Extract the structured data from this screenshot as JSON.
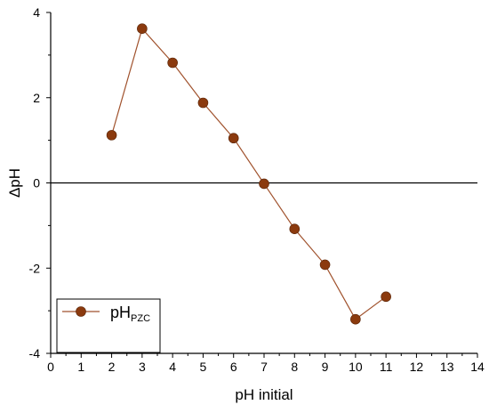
{
  "chart_data": {
    "type": "line",
    "x": [
      2,
      3,
      4,
      5,
      6,
      7,
      8,
      9,
      10,
      11
    ],
    "series": [
      {
        "name": "pHPZC",
        "name_main": "pH",
        "name_sub": "PZC",
        "values": [
          1.12,
          3.62,
          2.82,
          1.88,
          1.05,
          -0.02,
          -1.08,
          -1.92,
          -3.2,
          -2.67
        ],
        "color": "#8B3A0E",
        "line_color": "#A0522D"
      }
    ],
    "xlabel": "pH initial",
    "ylabel": "ΔpH",
    "xlim": [
      0,
      14
    ],
    "ylim": [
      -4,
      4
    ],
    "xticks": [
      "0",
      "1",
      "2",
      "3",
      "4",
      "5",
      "6",
      "7",
      "8",
      "9",
      "10",
      "11",
      "12",
      "13",
      "14"
    ],
    "yticks": [
      "-4",
      "-2",
      "0",
      "2",
      "4"
    ],
    "zero_line": true,
    "grid": false,
    "legend_position": "bottom-left"
  }
}
